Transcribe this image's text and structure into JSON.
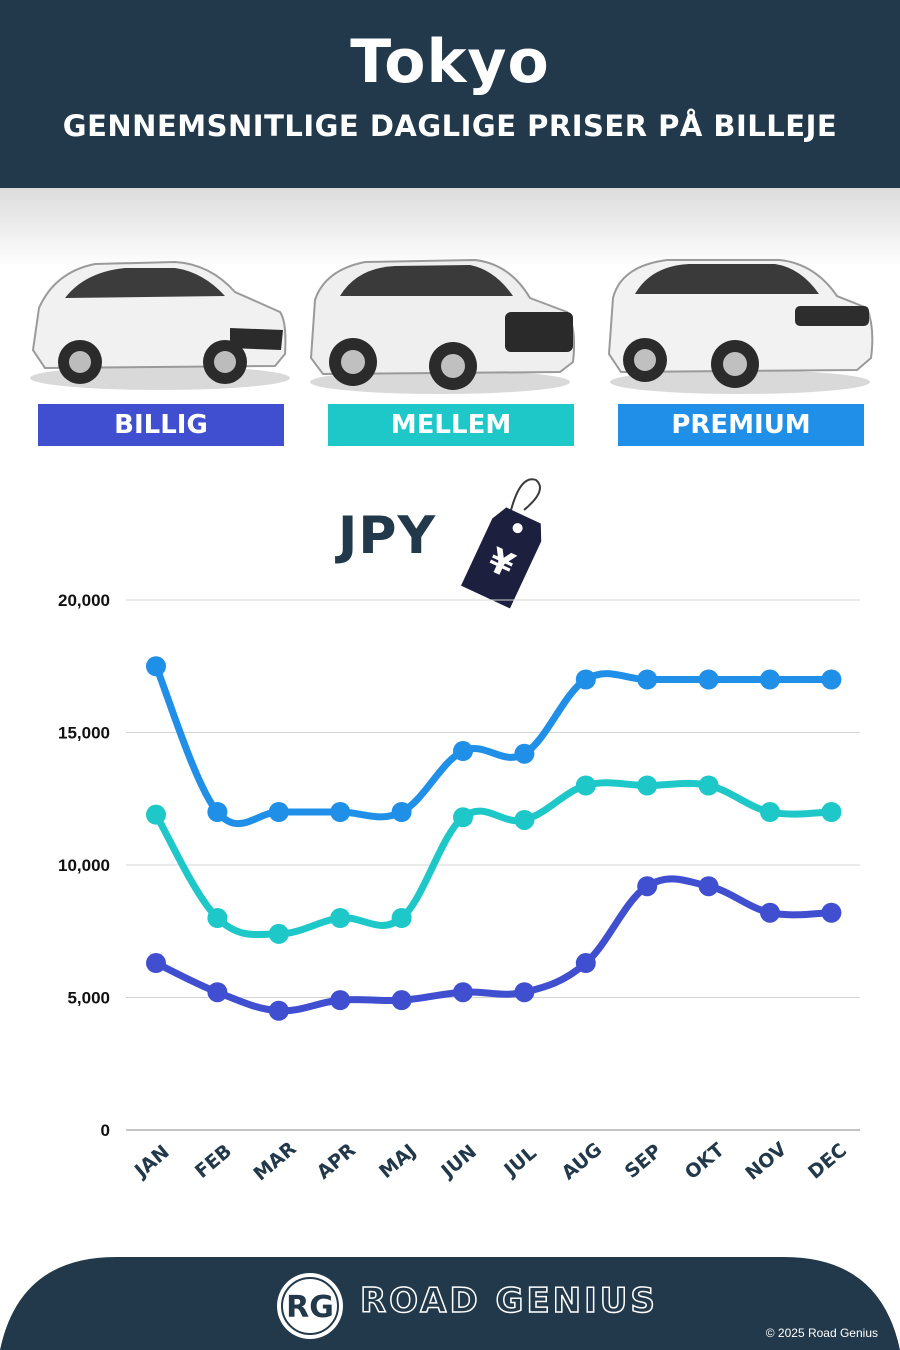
{
  "header": {
    "title": "Tokyo",
    "subtitle": "GENNEMSNITLIGE DAGLIGE PRISER PÅ BILLEJE"
  },
  "categories": [
    {
      "label": "BILLIG",
      "color": "#3f4fd0"
    },
    {
      "label": "MELLEM",
      "color": "#1ec8c8"
    },
    {
      "label": "PREMIUM",
      "color": "#1f8fe8"
    }
  ],
  "currency": {
    "code": "JPY",
    "icon": "yen-price-tag-icon",
    "symbol": "¥"
  },
  "chart_data": {
    "type": "line",
    "categories": [
      "JAN",
      "FEB",
      "MAR",
      "APR",
      "MAJ",
      "JUN",
      "JUL",
      "AUG",
      "SEP",
      "OKT",
      "NOV",
      "DEC"
    ],
    "ylim": [
      0,
      20000
    ],
    "yticks": [
      "0",
      "5,000",
      "10,000",
      "15,000",
      "20,000"
    ],
    "ytick_values": [
      0,
      5000,
      10000,
      15000,
      20000
    ],
    "grid": true,
    "series": [
      {
        "name": "PREMIUM",
        "color": "#1f8fe8",
        "values": [
          17500,
          12000,
          12000,
          12000,
          12000,
          14300,
          14200,
          17000,
          17000,
          17000,
          17000,
          17000
        ]
      },
      {
        "name": "MELLEM",
        "color": "#1ec8c8",
        "values": [
          11900,
          8000,
          7400,
          8000,
          8000,
          11800,
          11700,
          13000,
          13000,
          13000,
          12000,
          12000
        ]
      },
      {
        "name": "BILLIG",
        "color": "#3f4fd0",
        "values": [
          6300,
          5200,
          4500,
          4900,
          4900,
          5200,
          5200,
          6300,
          9200,
          9200,
          8200,
          8200
        ]
      }
    ]
  },
  "footer": {
    "brand": "ROAD GENIUS",
    "logo_text": "RG",
    "copyright": "© 2025 Road Genius"
  }
}
